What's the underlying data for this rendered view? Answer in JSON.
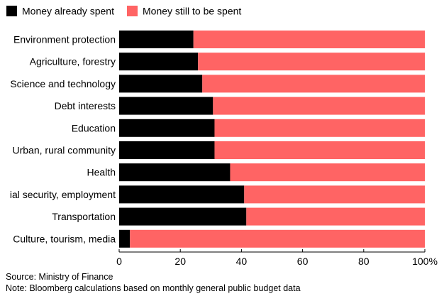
{
  "chart_data": {
    "type": "bar",
    "stacked": true,
    "orientation": "horizontal",
    "categories": [
      "Environment protection",
      "Agriculture, forestry",
      "Science and technology",
      "Debt interests",
      "Education",
      "Urban, rural community",
      "Health",
      "ial security, employment",
      "Transportation",
      "Culture, tourism, media"
    ],
    "series": [
      {
        "name": "Money already spent",
        "color": "#000000",
        "values": [
          24.3,
          25.8,
          27.2,
          30.7,
          31.2,
          31.2,
          36.3,
          40.9,
          41.6,
          3.5
        ]
      },
      {
        "name": "Money still to be spent",
        "color": "#ff6464",
        "values": [
          75.7,
          74.2,
          72.8,
          69.3,
          68.8,
          68.8,
          63.7,
          59.1,
          58.4,
          96.5
        ]
      }
    ],
    "xlim": [
      0,
      100
    ],
    "xticks": [
      0,
      20,
      40,
      60,
      80,
      100
    ],
    "xtick_labels": [
      "0",
      "20",
      "40",
      "60",
      "80",
      "100%"
    ],
    "legend_position": "top-left"
  },
  "footer": {
    "source": "Source: Ministry of Finance",
    "note": "Note: Bloomberg calculations based on monthly general public budget data"
  }
}
